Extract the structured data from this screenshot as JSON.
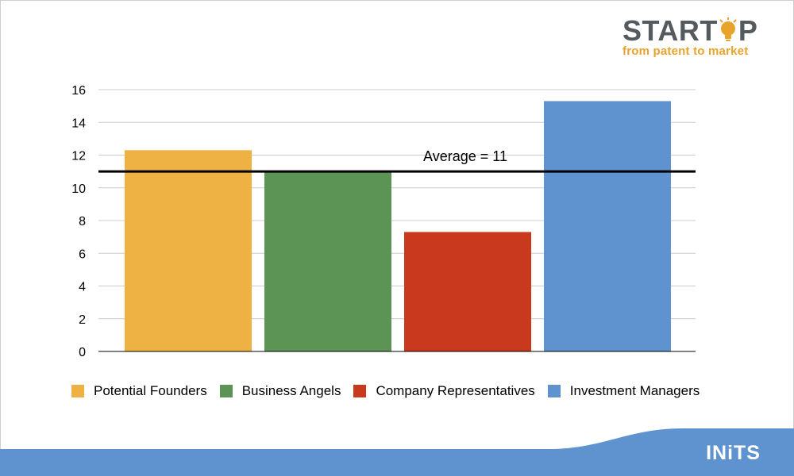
{
  "chart_data": {
    "type": "bar",
    "categories": [
      "Potential Founders",
      "Business Angels",
      "Company Representatives",
      "Investment Managers"
    ],
    "series": [
      {
        "values": [
          12.3,
          11.0,
          7.3,
          15.3
        ]
      }
    ],
    "colors": [
      "#eeb244",
      "#5c9456",
      "#c9391d",
      "#5f93cf"
    ],
    "yticks": [
      "0",
      "2",
      "4",
      "6",
      "8",
      "10",
      "12",
      "14",
      "16"
    ],
    "ylim": [
      0,
      16
    ],
    "grid": true,
    "legend_position": "bottom",
    "reference_line": {
      "value": 11,
      "label": "Average = 11"
    }
  },
  "logo": {
    "main_left": "START",
    "main_right": "P",
    "tagline": "from patent to market",
    "icon": "lightbulb-icon"
  },
  "footer": {
    "brand": "INiTS",
    "color": "#5f93cf"
  }
}
